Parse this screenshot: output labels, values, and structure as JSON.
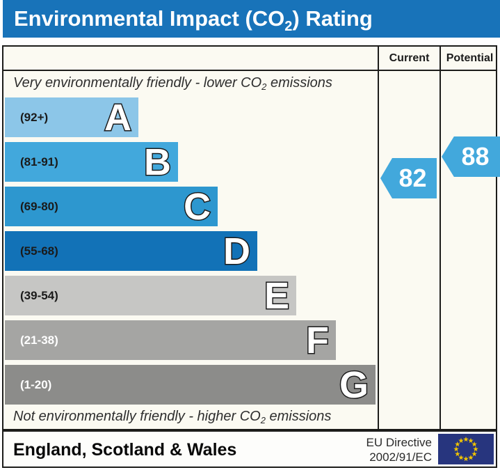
{
  "title": {
    "pre": "Environmental Impact (CO",
    "sub": "2",
    "post": ") Rating"
  },
  "columns": {
    "current": "Current",
    "potential": "Potential"
  },
  "notes": {
    "top": {
      "pre": "Very environmentally friendly - lower CO",
      "sub": "2",
      "post": " emissions"
    },
    "bottom": {
      "pre": "Not environmentally friendly - higher CO",
      "sub": "2",
      "post": " emissions"
    }
  },
  "chart_data": {
    "type": "bar",
    "orientation": "horizontal",
    "title": "Environmental Impact (CO2) Rating",
    "bands": [
      {
        "letter": "A",
        "range": "(92+)",
        "min": 92,
        "max": 100,
        "color": "#8cc6e8",
        "label_color": "#1a1a1a"
      },
      {
        "letter": "B",
        "range": "(81-91)",
        "min": 81,
        "max": 91,
        "color": "#42a8dc",
        "label_color": "#1a1a1a"
      },
      {
        "letter": "C",
        "range": "(69-80)",
        "min": 69,
        "max": 80,
        "color": "#2d97cf",
        "label_color": "#1a1a1a"
      },
      {
        "letter": "D",
        "range": "(55-68)",
        "min": 55,
        "max": 68,
        "color": "#1272b7",
        "label_color": "#1a1a1a"
      },
      {
        "letter": "E",
        "range": "(39-54)",
        "min": 39,
        "max": 54,
        "color": "#c6c6c4",
        "label_color": "#1a1a1a"
      },
      {
        "letter": "F",
        "range": "(21-38)",
        "min": 21,
        "max": 38,
        "color": "#a5a5a3",
        "label_color": "#ffffff"
      },
      {
        "letter": "G",
        "range": "(1-20)",
        "min": 1,
        "max": 20,
        "color": "#8c8c8a",
        "label_color": "#ffffff"
      }
    ],
    "current": {
      "value": 82,
      "display": "82",
      "band": "B",
      "color": "#42a8dc"
    },
    "potential": {
      "value": 88,
      "display": "88",
      "band": "B",
      "color": "#42a8dc"
    }
  },
  "footer": {
    "region": "England, Scotland & Wales",
    "directive_line1": "EU Directive",
    "directive_line2": "2002/91/EC",
    "flag": {
      "name": "eu-flag",
      "bg": "#27357e",
      "star_color": "#f2c500"
    }
  },
  "colors": {
    "title_bar": "#1873b9",
    "border": "#1c1c1a",
    "table_bg": "#fbfaf2"
  }
}
